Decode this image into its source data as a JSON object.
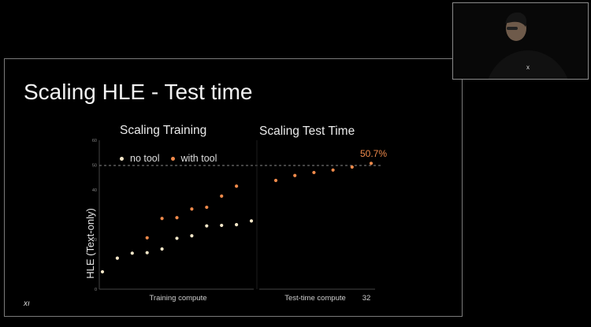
{
  "slide": {
    "title": "Scaling HLE - Test time",
    "subtitle_left": "Scaling Training",
    "subtitle_right": "Scaling Test Time",
    "logo_text": "xı"
  },
  "legend": {
    "no_tool": "no tool",
    "with_tool": "with tool"
  },
  "annotation": "50.7%",
  "axes": {
    "y_label": "HLE (Text-only)",
    "x_label_left": "Training compute",
    "x_label_right": "Test-time compute",
    "x_tick_right": "32"
  },
  "chart_data": {
    "type": "scatter",
    "ylabel": "HLE (Text-only)",
    "ylim": [
      0,
      60
    ],
    "yticks": [
      "0",
      "20",
      "40",
      "50",
      "60"
    ],
    "reference_line": 50,
    "grid": false,
    "legend_placement": "top-left",
    "colors": {
      "no_tool": "#f3e6c8",
      "with_tool": "#f08a4b"
    },
    "series": [
      {
        "name": "no tool",
        "panel": "Scaling Training",
        "x": [
          1,
          2,
          3,
          4,
          5,
          6,
          7,
          8,
          9,
          10,
          11
        ],
        "y": [
          7,
          12.5,
          14.5,
          14.7,
          16.2,
          20.5,
          21.5,
          25.5,
          25.7,
          26,
          27.5
        ]
      },
      {
        "name": "with tool",
        "panel": "Scaling Training",
        "x": [
          4,
          5,
          6,
          7,
          8,
          9,
          10
        ],
        "y": [
          20.7,
          28.5,
          28.8,
          32.3,
          33,
          37.5,
          41.5
        ]
      },
      {
        "name": "with tool",
        "panel": "Scaling Test Time",
        "x": [
          1,
          2,
          3,
          4,
          5,
          6
        ],
        "y": [
          43.8,
          45.8,
          47,
          48,
          49.2,
          50.7
        ]
      }
    ]
  }
}
